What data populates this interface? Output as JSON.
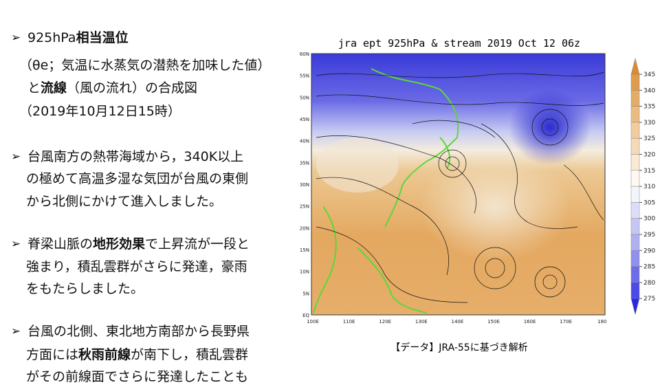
{
  "slide": {
    "blocks": [
      {
        "marker": "➢",
        "lines": [
          [
            "925hPa",
            {
              "text": "相当温位",
              "bold": true
            }
          ],
          [
            "（θe；気温に水蒸気の潜熱を加味した値）"
          ],
          [
            "と",
            {
              "text": "流線",
              "bold": true
            },
            "（風の流れ）の合成図"
          ],
          [
            "（2019年10月12日15時）"
          ]
        ]
      },
      {
        "marker": "➢",
        "lines": [
          [
            "台風南方の熱帯海域から，340K以上"
          ],
          [
            "の極めて高温多湿な気団が台風の東側"
          ],
          [
            "から北側にかけて進入しました。"
          ]
        ]
      },
      {
        "marker": "➢",
        "lines": [
          [
            "脊梁山脈の",
            {
              "text": "地形効果",
              "bold": true
            },
            "で上昇流が一段と"
          ],
          [
            "強まり，積乱雲群がさらに発達，豪雨"
          ],
          [
            "をもたらしました。"
          ]
        ]
      },
      {
        "marker": "➢",
        "lines": [
          [
            "台風の北側、東北地方南部から長野県"
          ],
          [
            "方面には",
            {
              "text": "秋雨前線",
              "bold": true
            },
            "が南下し，積乱雲群"
          ],
          [
            "がその前線面でさらに発達したことも"
          ]
        ]
      }
    ]
  },
  "figure": {
    "title": "jra ept 925hPa & stream 2019 Oct 12 06z",
    "lat_labels": [
      "60N",
      "55N",
      "50N",
      "45N",
      "40N",
      "35N",
      "30N",
      "25N",
      "20N",
      "15N",
      "10N",
      "5N",
      "EQ"
    ],
    "lon_labels": [
      "100E",
      "110E",
      "120E",
      "130E",
      "140E",
      "150E",
      "160E",
      "170E",
      "180"
    ],
    "colorbar_ticks": [
      345,
      340,
      335,
      330,
      325,
      320,
      315,
      310,
      305,
      300,
      295,
      290,
      285,
      280,
      275
    ],
    "caption": "【データ】JRA-55に基づき解析"
  }
}
